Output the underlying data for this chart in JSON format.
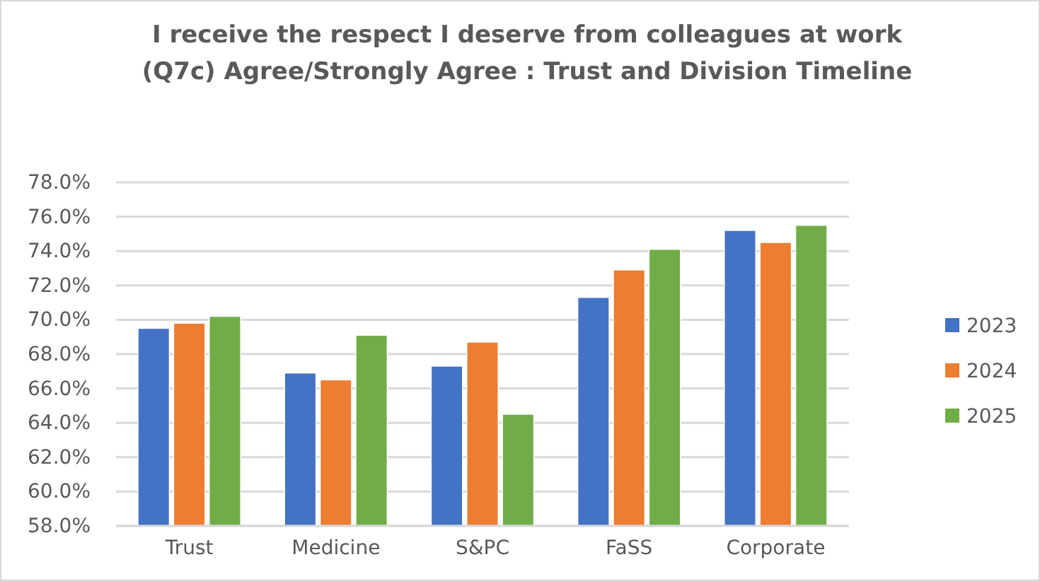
{
  "chart_data": {
    "type": "bar",
    "title": "I receive the respect I deserve from colleagues at work\n(Q7c) Agree/Strongly Agree : Trust and Division Timeline",
    "categories": [
      "Trust",
      "Medicine",
      "S&PC",
      "FaSS",
      "Corporate"
    ],
    "series": [
      {
        "name": "2023",
        "color": "#4472c4",
        "values": [
          69.5,
          66.9,
          67.3,
          71.3,
          75.2
        ]
      },
      {
        "name": "2024",
        "color": "#ed7d31",
        "values": [
          69.8,
          66.5,
          68.7,
          72.9,
          74.5
        ]
      },
      {
        "name": "2025",
        "color": "#70ad47",
        "values": [
          70.2,
          69.1,
          64.5,
          74.1,
          75.5
        ]
      }
    ],
    "ylim": [
      58,
      78
    ],
    "yticks": [
      {
        "value": 58,
        "label": "58.0%"
      },
      {
        "value": 60,
        "label": "60.0%"
      },
      {
        "value": 62,
        "label": "62.0%"
      },
      {
        "value": 64,
        "label": "64.0%"
      },
      {
        "value": 66,
        "label": "66.0%"
      },
      {
        "value": 68,
        "label": "68.0%"
      },
      {
        "value": 70,
        "label": "70.0%"
      },
      {
        "value": 72,
        "label": "72.0%"
      },
      {
        "value": 74,
        "label": "74.0%"
      },
      {
        "value": 76,
        "label": "76.0%"
      },
      {
        "value": 78,
        "label": "78.0%"
      }
    ],
    "grid": "y",
    "legend": "right"
  }
}
